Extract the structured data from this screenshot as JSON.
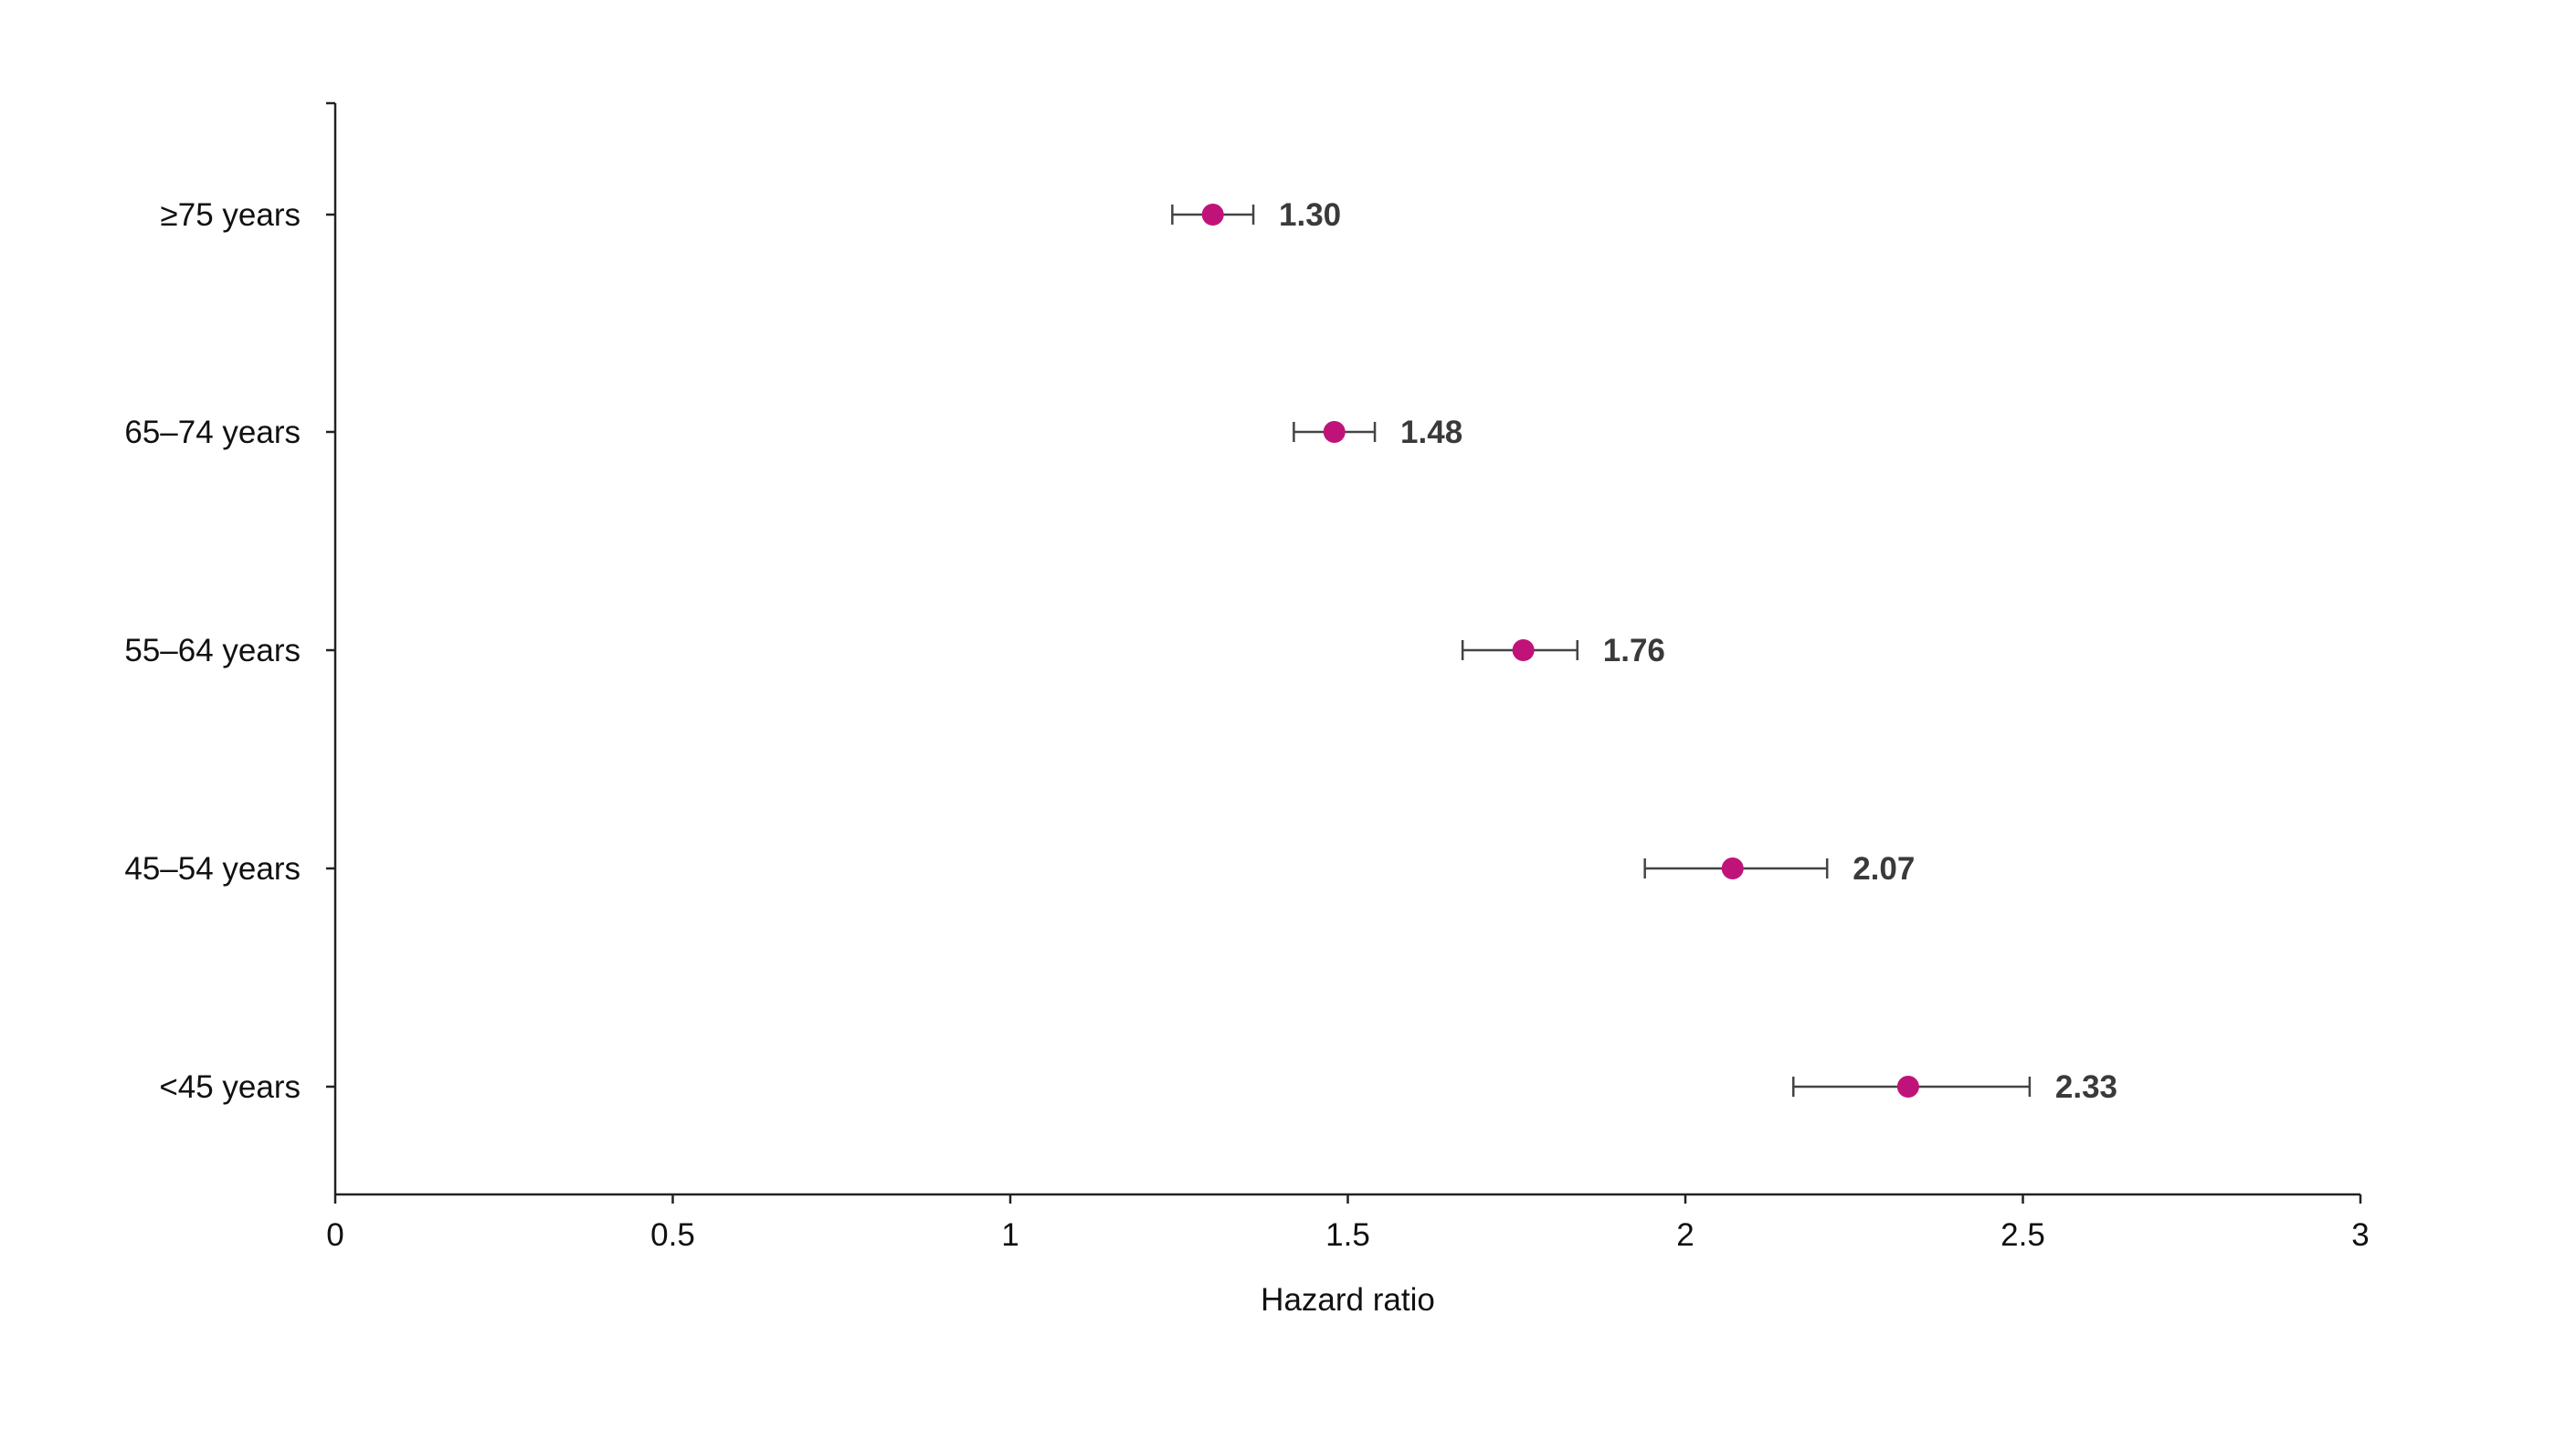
{
  "chart_data": {
    "type": "scatter",
    "orientation": "horizontal-forest-plot",
    "categories": [
      "≥75 years",
      "65–74 years",
      "55–64 years",
      "45–54 years",
      "<45 years"
    ],
    "series": [
      {
        "values": [
          1.3,
          1.48,
          1.76,
          2.07,
          2.33
        ],
        "ci_lower": [
          1.24,
          1.42,
          1.67,
          1.94,
          2.16
        ],
        "ci_upper": [
          1.36,
          1.54,
          1.84,
          2.21,
          2.51
        ],
        "data_labels": [
          "1.30",
          "1.48",
          "1.76",
          "2.07",
          "2.33"
        ]
      }
    ],
    "title": "",
    "xlabel": "Hazard ratio",
    "ylabel": "",
    "xlim": [
      0,
      3
    ],
    "xticks": [
      0,
      0.5,
      1,
      1.5,
      2,
      2.5,
      3
    ],
    "xtick_labels": [
      "0",
      "0.5",
      "1",
      "1.5",
      "2",
      "2.5",
      "3"
    ],
    "grid": false,
    "legend": "none",
    "colors": {
      "point": "#c0137a",
      "error_bar": "#444444",
      "axis": "#222222",
      "data_label": "#3a3a3a"
    }
  }
}
